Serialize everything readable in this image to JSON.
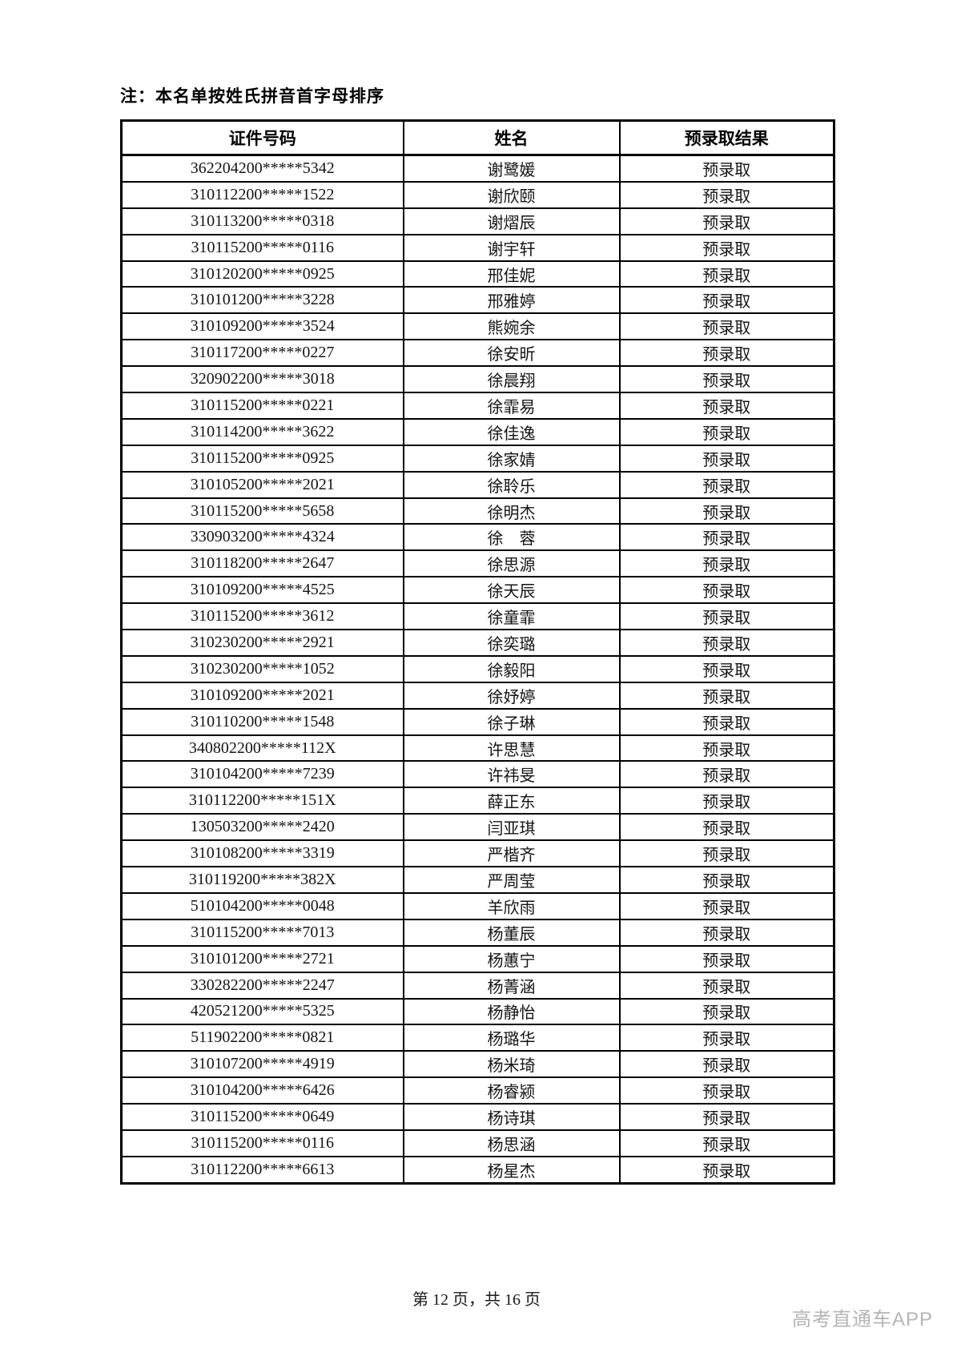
{
  "note": "注：本名单按姓氏拼音首字母排序",
  "table": {
    "headers": [
      "证件号码",
      "姓名",
      "预录取结果"
    ],
    "rows": [
      [
        "362204200*****5342",
        "谢鹭媛",
        "预录取"
      ],
      [
        "310112200*****1522",
        "谢欣颐",
        "预录取"
      ],
      [
        "310113200*****0318",
        "谢熠辰",
        "预录取"
      ],
      [
        "310115200*****0116",
        "谢宇轩",
        "预录取"
      ],
      [
        "310120200*****0925",
        "邢佳妮",
        "预录取"
      ],
      [
        "310101200*****3228",
        "邢雅婷",
        "预录取"
      ],
      [
        "310109200*****3524",
        "熊婉余",
        "预录取"
      ],
      [
        "310117200*****0227",
        "徐安昕",
        "预录取"
      ],
      [
        "320902200*****3018",
        "徐晨翔",
        "预录取"
      ],
      [
        "310115200*****0221",
        "徐霏易",
        "预录取"
      ],
      [
        "310114200*****3622",
        "徐佳逸",
        "预录取"
      ],
      [
        "310115200*****0925",
        "徐家婧",
        "预录取"
      ],
      [
        "310105200*****2021",
        "徐聆乐",
        "预录取"
      ],
      [
        "310115200*****5658",
        "徐明杰",
        "预录取"
      ],
      [
        "330903200*****4324",
        "徐　蓉",
        "预录取"
      ],
      [
        "310118200*****2647",
        "徐思源",
        "预录取"
      ],
      [
        "310109200*****4525",
        "徐天辰",
        "预录取"
      ],
      [
        "310115200*****3612",
        "徐童霏",
        "预录取"
      ],
      [
        "310230200*****2921",
        "徐奕璐",
        "预录取"
      ],
      [
        "310230200*****1052",
        "徐毅阳",
        "预录取"
      ],
      [
        "310109200*****2021",
        "徐妤婷",
        "预录取"
      ],
      [
        "310110200*****1548",
        "徐子琳",
        "预录取"
      ],
      [
        "340802200*****112X",
        "许思慧",
        "预录取"
      ],
      [
        "310104200*****7239",
        "许祎旻",
        "预录取"
      ],
      [
        "310112200*****151X",
        "薛正东",
        "预录取"
      ],
      [
        "130503200*****2420",
        "闫亚琪",
        "预录取"
      ],
      [
        "310108200*****3319",
        "严楷齐",
        "预录取"
      ],
      [
        "310119200*****382X",
        "严周莹",
        "预录取"
      ],
      [
        "510104200*****0048",
        "羊欣雨",
        "预录取"
      ],
      [
        "310115200*****7013",
        "杨董辰",
        "预录取"
      ],
      [
        "310101200*****2721",
        "杨蕙宁",
        "预录取"
      ],
      [
        "330282200*****2247",
        "杨菁涵",
        "预录取"
      ],
      [
        "420521200*****5325",
        "杨静怡",
        "预录取"
      ],
      [
        "511902200*****0821",
        "杨璐华",
        "预录取"
      ],
      [
        "310107200*****4919",
        "杨米琦",
        "预录取"
      ],
      [
        "310104200*****6426",
        "杨睿颍",
        "预录取"
      ],
      [
        "310115200*****0649",
        "杨诗琪",
        "预录取"
      ],
      [
        "310115200*****0116",
        "杨思涵",
        "预录取"
      ],
      [
        "310112200*****6613",
        "杨星杰",
        "预录取"
      ]
    ]
  },
  "footer": {
    "page_info": "第 12 页，共 16 页",
    "watermark": "高考直通车APP"
  },
  "colors": {
    "text": "#141414",
    "border": "#000000",
    "watermark": "#b5b5b5"
  }
}
